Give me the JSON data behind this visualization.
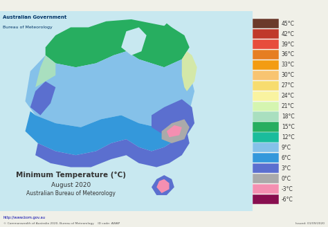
{
  "title": "Minimum Temperature (°C)",
  "subtitle1": "August 2020",
  "subtitle2": "Australian Bureau of Meteorology",
  "gov_line1": "Australian Government",
  "gov_line2": "Bureau of Meteorology",
  "url": "http://www.bom.gov.au",
  "copyright": "© Commonwealth of Australia 2020, Bureau of Meteorology",
  "id_code": "ID code: AWAP",
  "issued": "Issued: 01/09/2020",
  "background_color": "#f0f0e8",
  "map_bg_color": "#d4e8c2",
  "sea_color": "#c8e8f0",
  "legend_temps": [
    "45°C",
    "42°C",
    "39°C",
    "36°C",
    "33°C",
    "30°C",
    "27°C",
    "24°C",
    "21°C",
    "18°C",
    "15°C",
    "12°C",
    "9°C",
    "6°C",
    "3°C",
    "0°C",
    "-3°C",
    "-6°C"
  ],
  "legend_colors": [
    "#6b3a2a",
    "#c0392b",
    "#e74c3c",
    "#e67e22",
    "#f39c12",
    "#f8c471",
    "#f7dc6f",
    "#f9f3a0",
    "#d5f5b0",
    "#a9dfbf",
    "#27ae60",
    "#1abc9c",
    "#85c1e9",
    "#3498db",
    "#5b6fcf",
    "#aaaaaa",
    "#f48fb1",
    "#880e4f"
  ]
}
